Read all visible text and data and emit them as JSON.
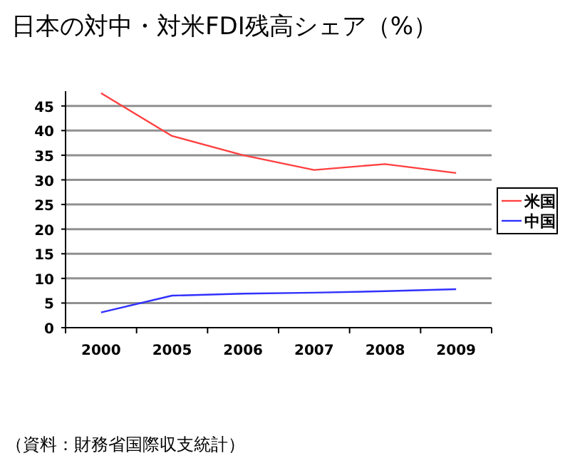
{
  "chart_data": {
    "type": "line",
    "title": "日本の対中・対米FDI残高シェア（%）",
    "categories": [
      "2000",
      "2005",
      "2006",
      "2007",
      "2008",
      "2009"
    ],
    "series": [
      {
        "name": "米国",
        "color": "#ff4040",
        "values": [
          47.6,
          38.9,
          35.0,
          32.0,
          33.2,
          31.4
        ]
      },
      {
        "name": "中国",
        "color": "#3030ff",
        "values": [
          3.1,
          6.5,
          6.9,
          7.1,
          7.4,
          7.8
        ]
      }
    ],
    "ylim": [
      0,
      48
    ],
    "yticks": [
      0,
      5,
      10,
      15,
      20,
      25,
      30,
      35,
      40,
      45
    ],
    "grid": "y",
    "legend": "right",
    "marker": "none",
    "line_style": "solid",
    "annotations": [
      "（資料：財務省国際収支統計）"
    ]
  }
}
